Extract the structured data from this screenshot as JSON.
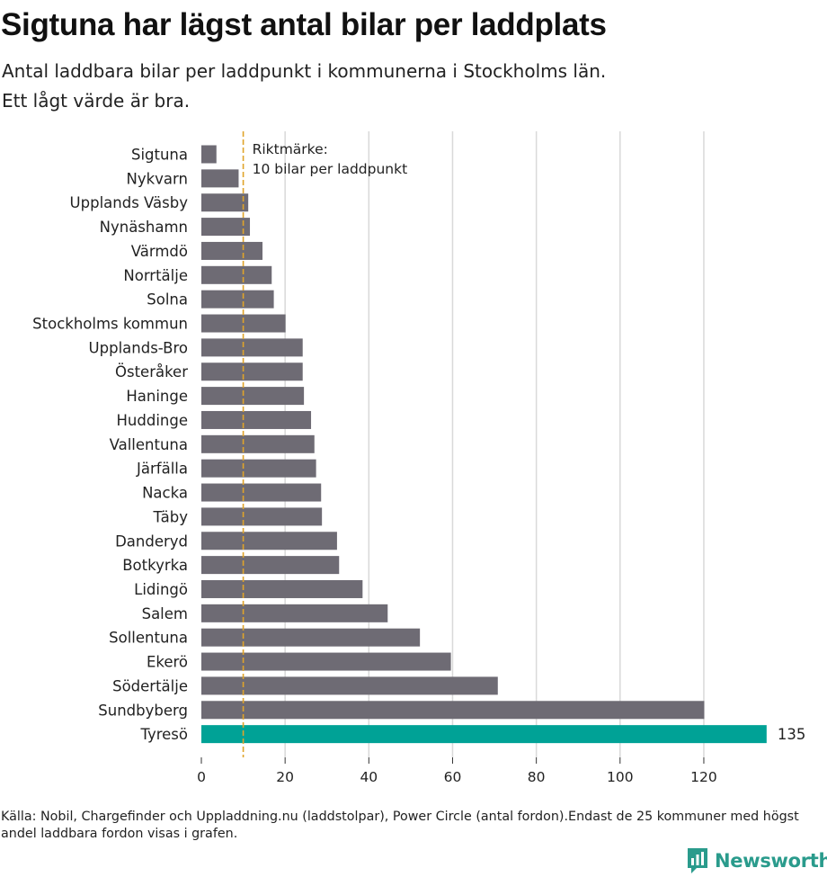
{
  "header": {
    "title": "Sigtuna har lägst antal bilar per laddplats",
    "subtitle_line1": "Antal laddbara bilar per laddpunkt i kommunerna i Stockholms län.",
    "subtitle_line2": "Ett lågt värde är bra."
  },
  "footer": {
    "source": "Källa: Nobil, Chargefinder och Uppladdning.nu (laddstolpar), Power Circle (antal fordon).Endast de 25 kommuner med högst andel laddbara fordon visas i grafen.",
    "brand": "Newsworthy"
  },
  "colors": {
    "bar": "#6e6b74",
    "highlight": "#00a296",
    "reference_line": "#e0a42a",
    "grid": "#d9d9d9",
    "brand": "#2a9b8c"
  },
  "chart_data": {
    "type": "bar",
    "orientation": "horizontal",
    "title": "Sigtuna har lägst antal bilar per laddplats",
    "subtitle": "Antal laddbara bilar per laddpunkt i kommunerna i Stockholms län. Ett lågt värde är bra.",
    "xlabel": "",
    "ylabel": "",
    "xlim": [
      0,
      135
    ],
    "xticks": [
      0,
      20,
      40,
      60,
      80,
      100,
      120
    ],
    "grid": true,
    "categories": [
      "Sigtuna",
      "Nykvarn",
      "Upplands Väsby",
      "Nynäshamn",
      "Värmdö",
      "Norrtälje",
      "Solna",
      "Stockholms kommun",
      "Upplands-Bro",
      "Österåker",
      "Haninge",
      "Huddinge",
      "Vallentuna",
      "Järfälla",
      "Nacka",
      "Täby",
      "Danderyd",
      "Botkyrka",
      "Lidingö",
      "Salem",
      "Sollentuna",
      "Ekerö",
      "Södertälje",
      "Sundbyberg",
      "Tyresö"
    ],
    "values": [
      3.6,
      8.9,
      11.2,
      11.6,
      14.6,
      16.8,
      17.3,
      20.1,
      24.2,
      24.2,
      24.5,
      26.2,
      27.0,
      27.4,
      28.6,
      28.8,
      32.4,
      32.9,
      38.5,
      44.5,
      52.2,
      59.6,
      70.8,
      120.1,
      135
    ],
    "highlight_category": "Tyresö",
    "value_label": "135",
    "reference_line": {
      "value": 10,
      "label_line1": "Riktmärke:",
      "label_line2": "10 bilar per laddpunkt"
    }
  }
}
